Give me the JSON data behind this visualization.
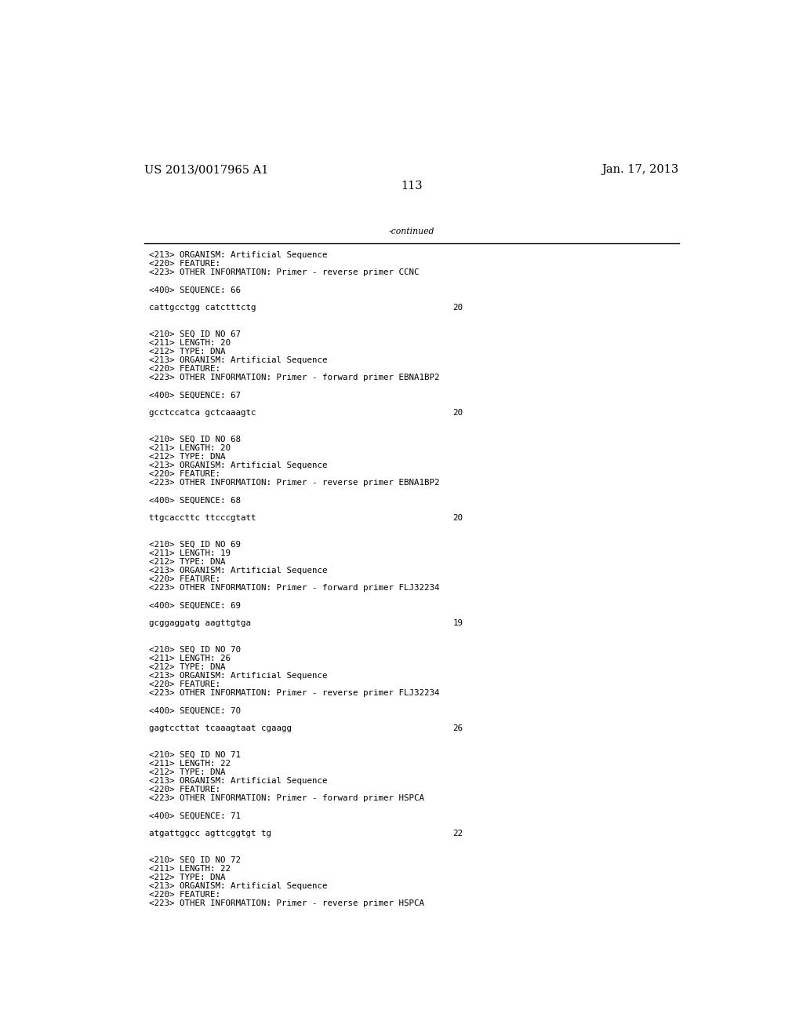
{
  "background_color": "#ffffff",
  "header_left": "US 2013/0017965 A1",
  "header_right": "Jan. 17, 2013",
  "page_number": "113",
  "continued_label": "-continued",
  "font_size_header": 10.5,
  "font_size_body": 7.8,
  "font_size_page": 10.5,
  "monospace_font": "DejaVu Sans Mono",
  "serif_font": "DejaVu Serif",
  "sections": [
    {
      "meta": [
        "<213> ORGANISM: Artificial Sequence",
        "<220> FEATURE:",
        "<223> OTHER INFORMATION: Primer - reverse primer CCNC"
      ],
      "seq_label": "<400> SEQUENCE: 66",
      "seq": "cattgcctgg catctttctg",
      "seq_num": "20"
    },
    {
      "meta": [
        "<210> SEQ ID NO 67",
        "<211> LENGTH: 20",
        "<212> TYPE: DNA",
        "<213> ORGANISM: Artificial Sequence",
        "<220> FEATURE:",
        "<223> OTHER INFORMATION: Primer - forward primer EBNA1BP2"
      ],
      "seq_label": "<400> SEQUENCE: 67",
      "seq": "gcctccatca gctcaaagtc",
      "seq_num": "20"
    },
    {
      "meta": [
        "<210> SEQ ID NO 68",
        "<211> LENGTH: 20",
        "<212> TYPE: DNA",
        "<213> ORGANISM: Artificial Sequence",
        "<220> FEATURE:",
        "<223> OTHER INFORMATION: Primer - reverse primer EBNA1BP2"
      ],
      "seq_label": "<400> SEQUENCE: 68",
      "seq": "ttgcaccttc ttcccgtatt",
      "seq_num": "20"
    },
    {
      "meta": [
        "<210> SEQ ID NO 69",
        "<211> LENGTH: 19",
        "<212> TYPE: DNA",
        "<213> ORGANISM: Artificial Sequence",
        "<220> FEATURE:",
        "<223> OTHER INFORMATION: Primer - forward primer FLJ32234"
      ],
      "seq_label": "<400> SEQUENCE: 69",
      "seq": "gcggaggatg aagttgtga",
      "seq_num": "19"
    },
    {
      "meta": [
        "<210> SEQ ID NO 70",
        "<211> LENGTH: 26",
        "<212> TYPE: DNA",
        "<213> ORGANISM: Artificial Sequence",
        "<220> FEATURE:",
        "<223> OTHER INFORMATION: Primer - reverse primer FLJ32234"
      ],
      "seq_label": "<400> SEQUENCE: 70",
      "seq": "gagtccttat tcaaagtaat cgaagg",
      "seq_num": "26"
    },
    {
      "meta": [
        "<210> SEQ ID NO 71",
        "<211> LENGTH: 22",
        "<212> TYPE: DNA",
        "<213> ORGANISM: Artificial Sequence",
        "<220> FEATURE:",
        "<223> OTHER INFORMATION: Primer - forward primer HSPCA"
      ],
      "seq_label": "<400> SEQUENCE: 71",
      "seq": "atgattggcc agttcggtgt tg",
      "seq_num": "22"
    },
    {
      "meta": [
        "<210> SEQ ID NO 72",
        "<211> LENGTH: 22",
        "<212> TYPE: DNA",
        "<213> ORGANISM: Artificial Sequence",
        "<220> FEATURE:",
        "<223> OTHER INFORMATION: Primer - reverse primer HSPCA"
      ],
      "seq_label": null,
      "seq": null,
      "seq_num": null
    }
  ]
}
